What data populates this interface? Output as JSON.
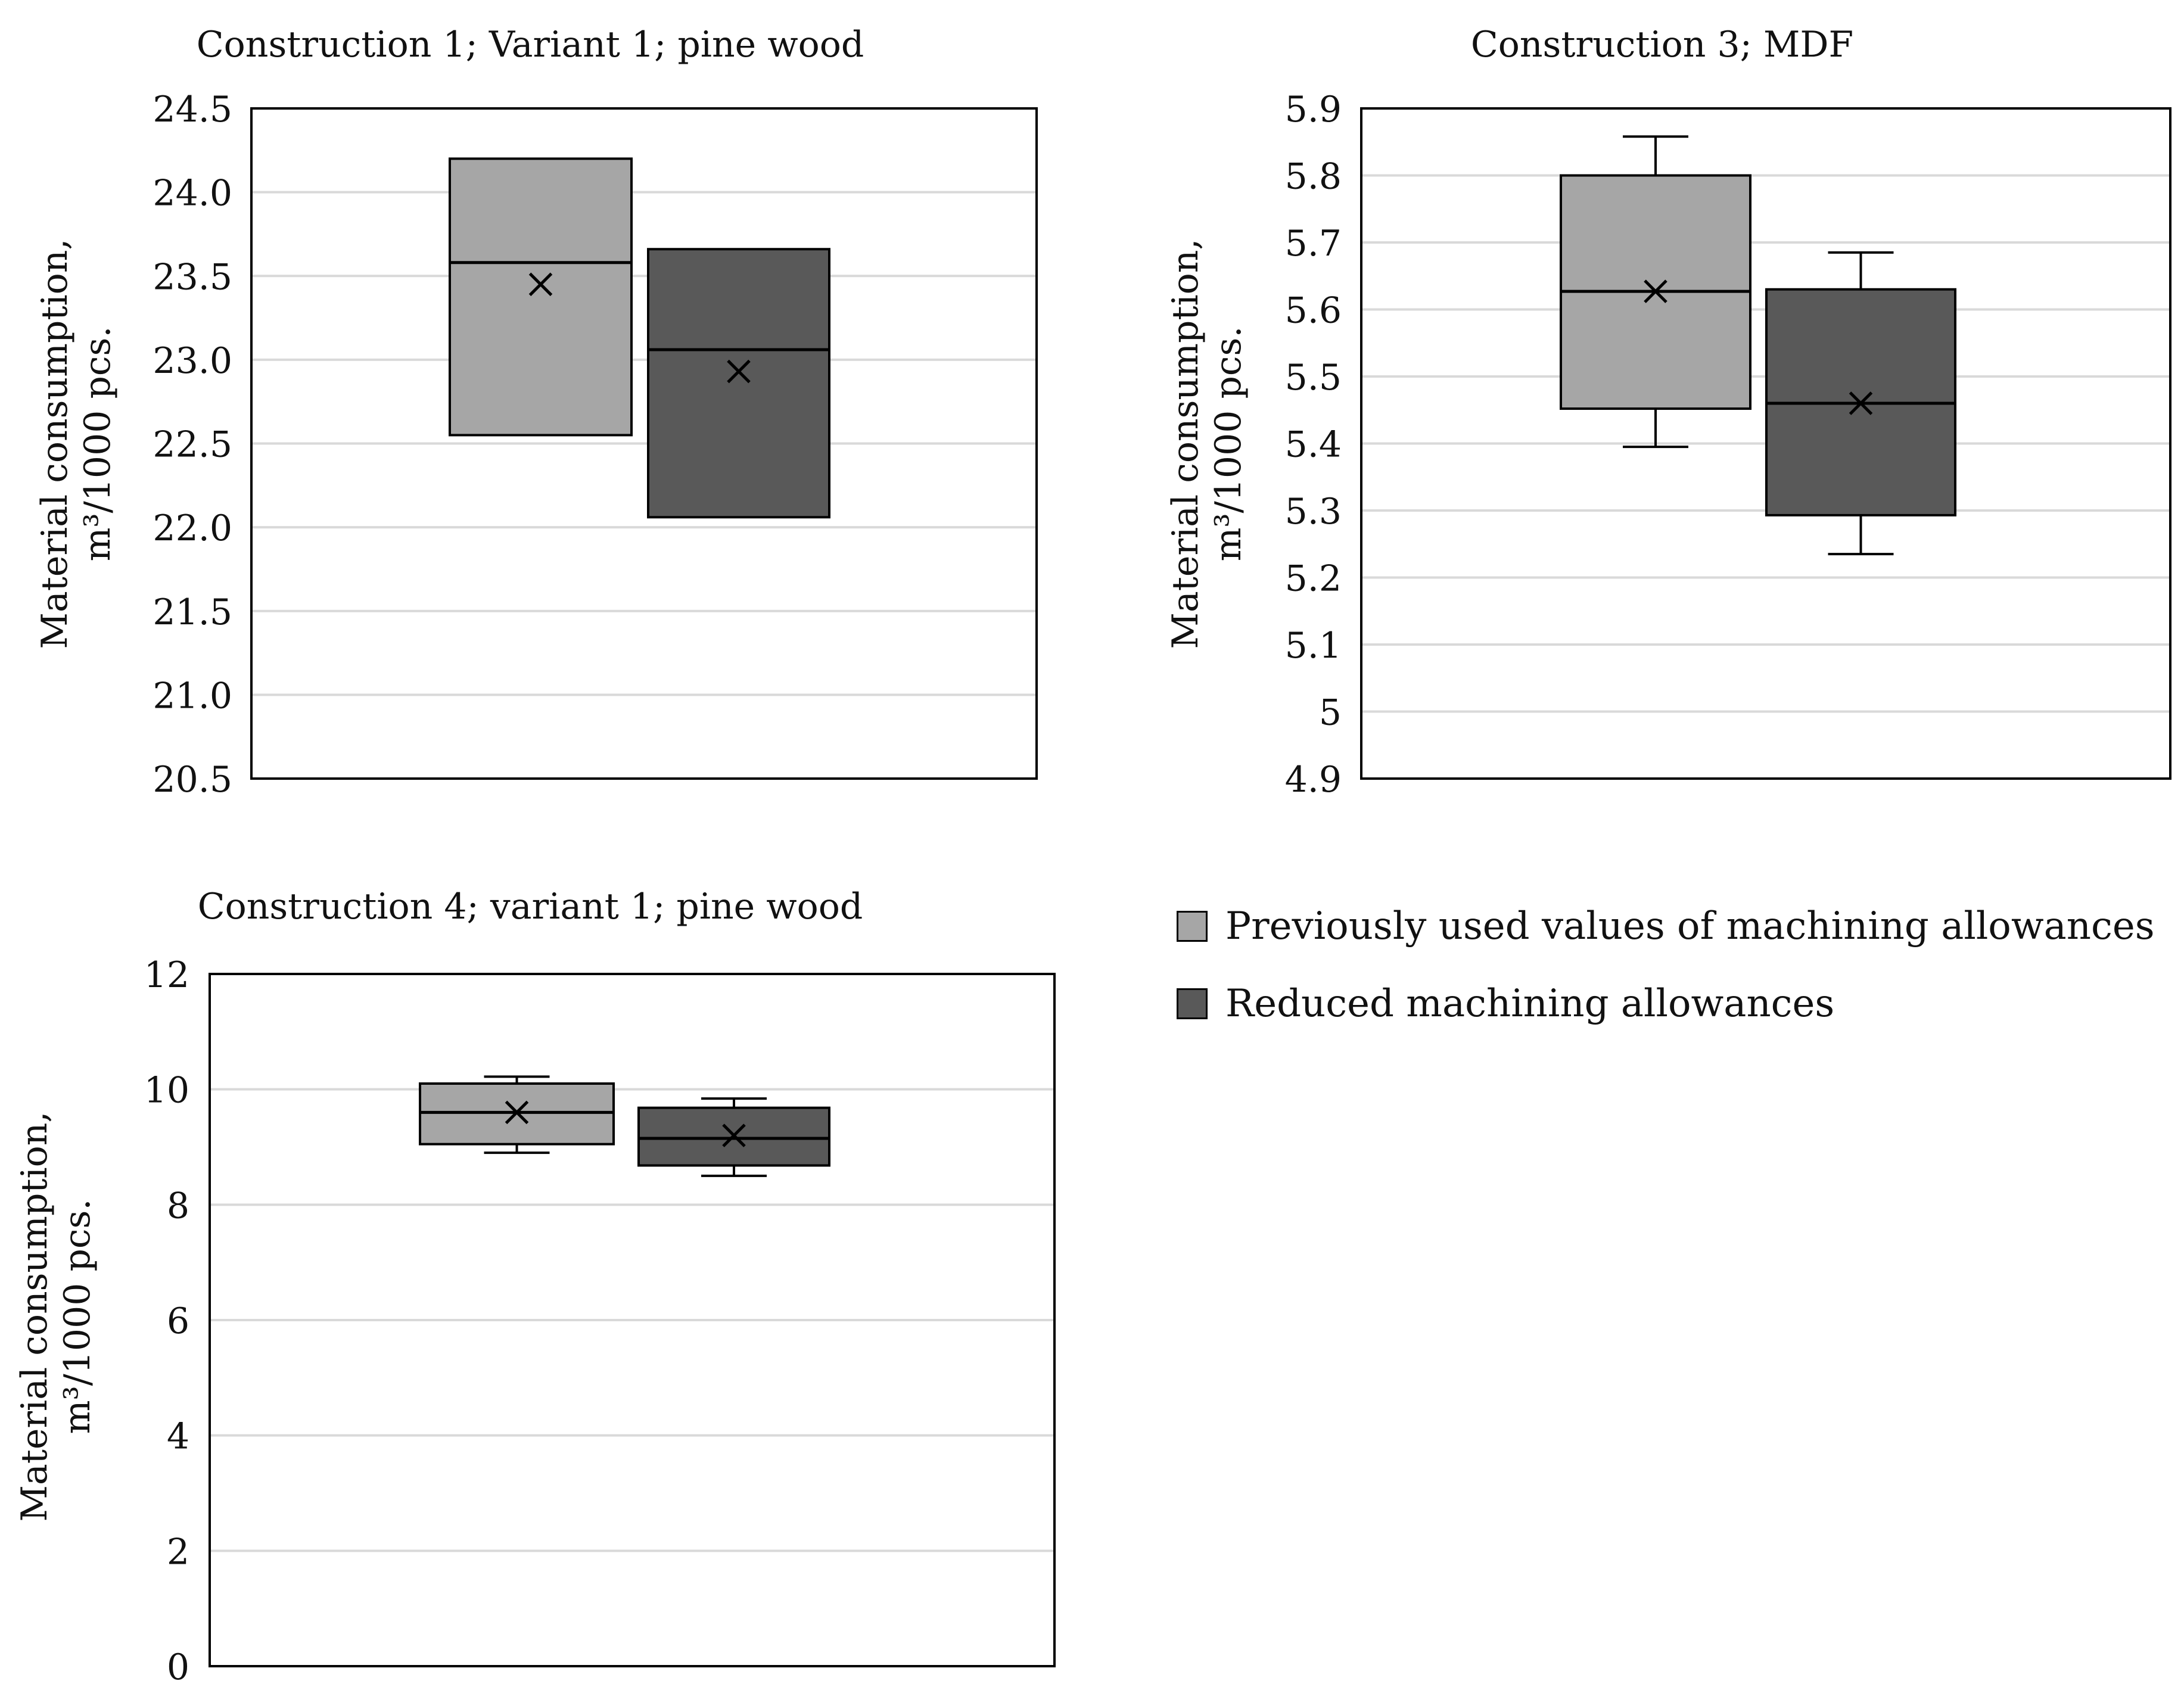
{
  "chart_data": [
    {
      "type": "box",
      "title": "Construction 1; Variant 1; pine wood",
      "ylabel": [
        "Material consumption,",
        "m³/1000 pcs."
      ],
      "xlabel": "",
      "ylim": [
        20.5,
        24.5
      ],
      "yticks": [
        "20.5",
        "21.0",
        "21.5",
        "22.0",
        "22.5",
        "23.0",
        "23.5",
        "24.0",
        "24.5"
      ],
      "grid": true,
      "series": [
        {
          "name": "Previously used values of machining allowances",
          "color": "#a6a6a6",
          "min": 22.55,
          "q1": 22.55,
          "median": 23.58,
          "q3": 24.2,
          "max": 24.2,
          "mean": 23.45
        },
        {
          "name": "Reduced machining allowances",
          "color": "#595959",
          "min": 22.06,
          "q1": 22.06,
          "median": 23.06,
          "q3": 23.66,
          "max": 23.66,
          "mean": 22.93
        }
      ]
    },
    {
      "type": "box",
      "title": "Construction 3; MDF",
      "ylabel": [
        "Material consumption,",
        "m³/1000 pcs."
      ],
      "xlabel": "",
      "ylim": [
        4.9,
        5.9
      ],
      "yticks": [
        "4.9",
        "5",
        "5.1",
        "5.2",
        "5.3",
        "5.4",
        "5.5",
        "5.6",
        "5.7",
        "5.8",
        "5.9"
      ],
      "grid": true,
      "series": [
        {
          "name": "Previously used values of machining allowances",
          "color": "#a6a6a6",
          "min": 5.395,
          "q1": 5.452,
          "median": 5.627,
          "q3": 5.8,
          "max": 5.858,
          "mean": 5.627
        },
        {
          "name": "Reduced machining allowances",
          "color": "#595959",
          "min": 5.235,
          "q1": 5.293,
          "median": 5.46,
          "q3": 5.63,
          "max": 5.685,
          "mean": 5.46
        }
      ]
    },
    {
      "type": "box",
      "title": "Construction 4; variant 1; pine wood",
      "ylabel": [
        "Material consumption,",
        "m³/1000 pcs."
      ],
      "xlabel": "",
      "ylim": [
        0,
        12
      ],
      "yticks": [
        "0",
        "2",
        "4",
        "6",
        "8",
        "10",
        "12"
      ],
      "grid": true,
      "series": [
        {
          "name": "Previously used values of machining allowances",
          "color": "#a6a6a6",
          "min": 8.9,
          "q1": 9.05,
          "median": 9.6,
          "q3": 10.1,
          "max": 10.22,
          "mean": 9.6
        },
        {
          "name": "Reduced machining allowances",
          "color": "#595959",
          "min": 8.5,
          "q1": 8.68,
          "median": 9.15,
          "q3": 9.68,
          "max": 9.84,
          "mean": 9.2
        }
      ]
    }
  ],
  "legend": {
    "items": [
      {
        "label": "Previously used values of machining allowances",
        "color": "#a6a6a6"
      },
      {
        "label": "Reduced machining allowances",
        "color": "#595959"
      }
    ]
  }
}
